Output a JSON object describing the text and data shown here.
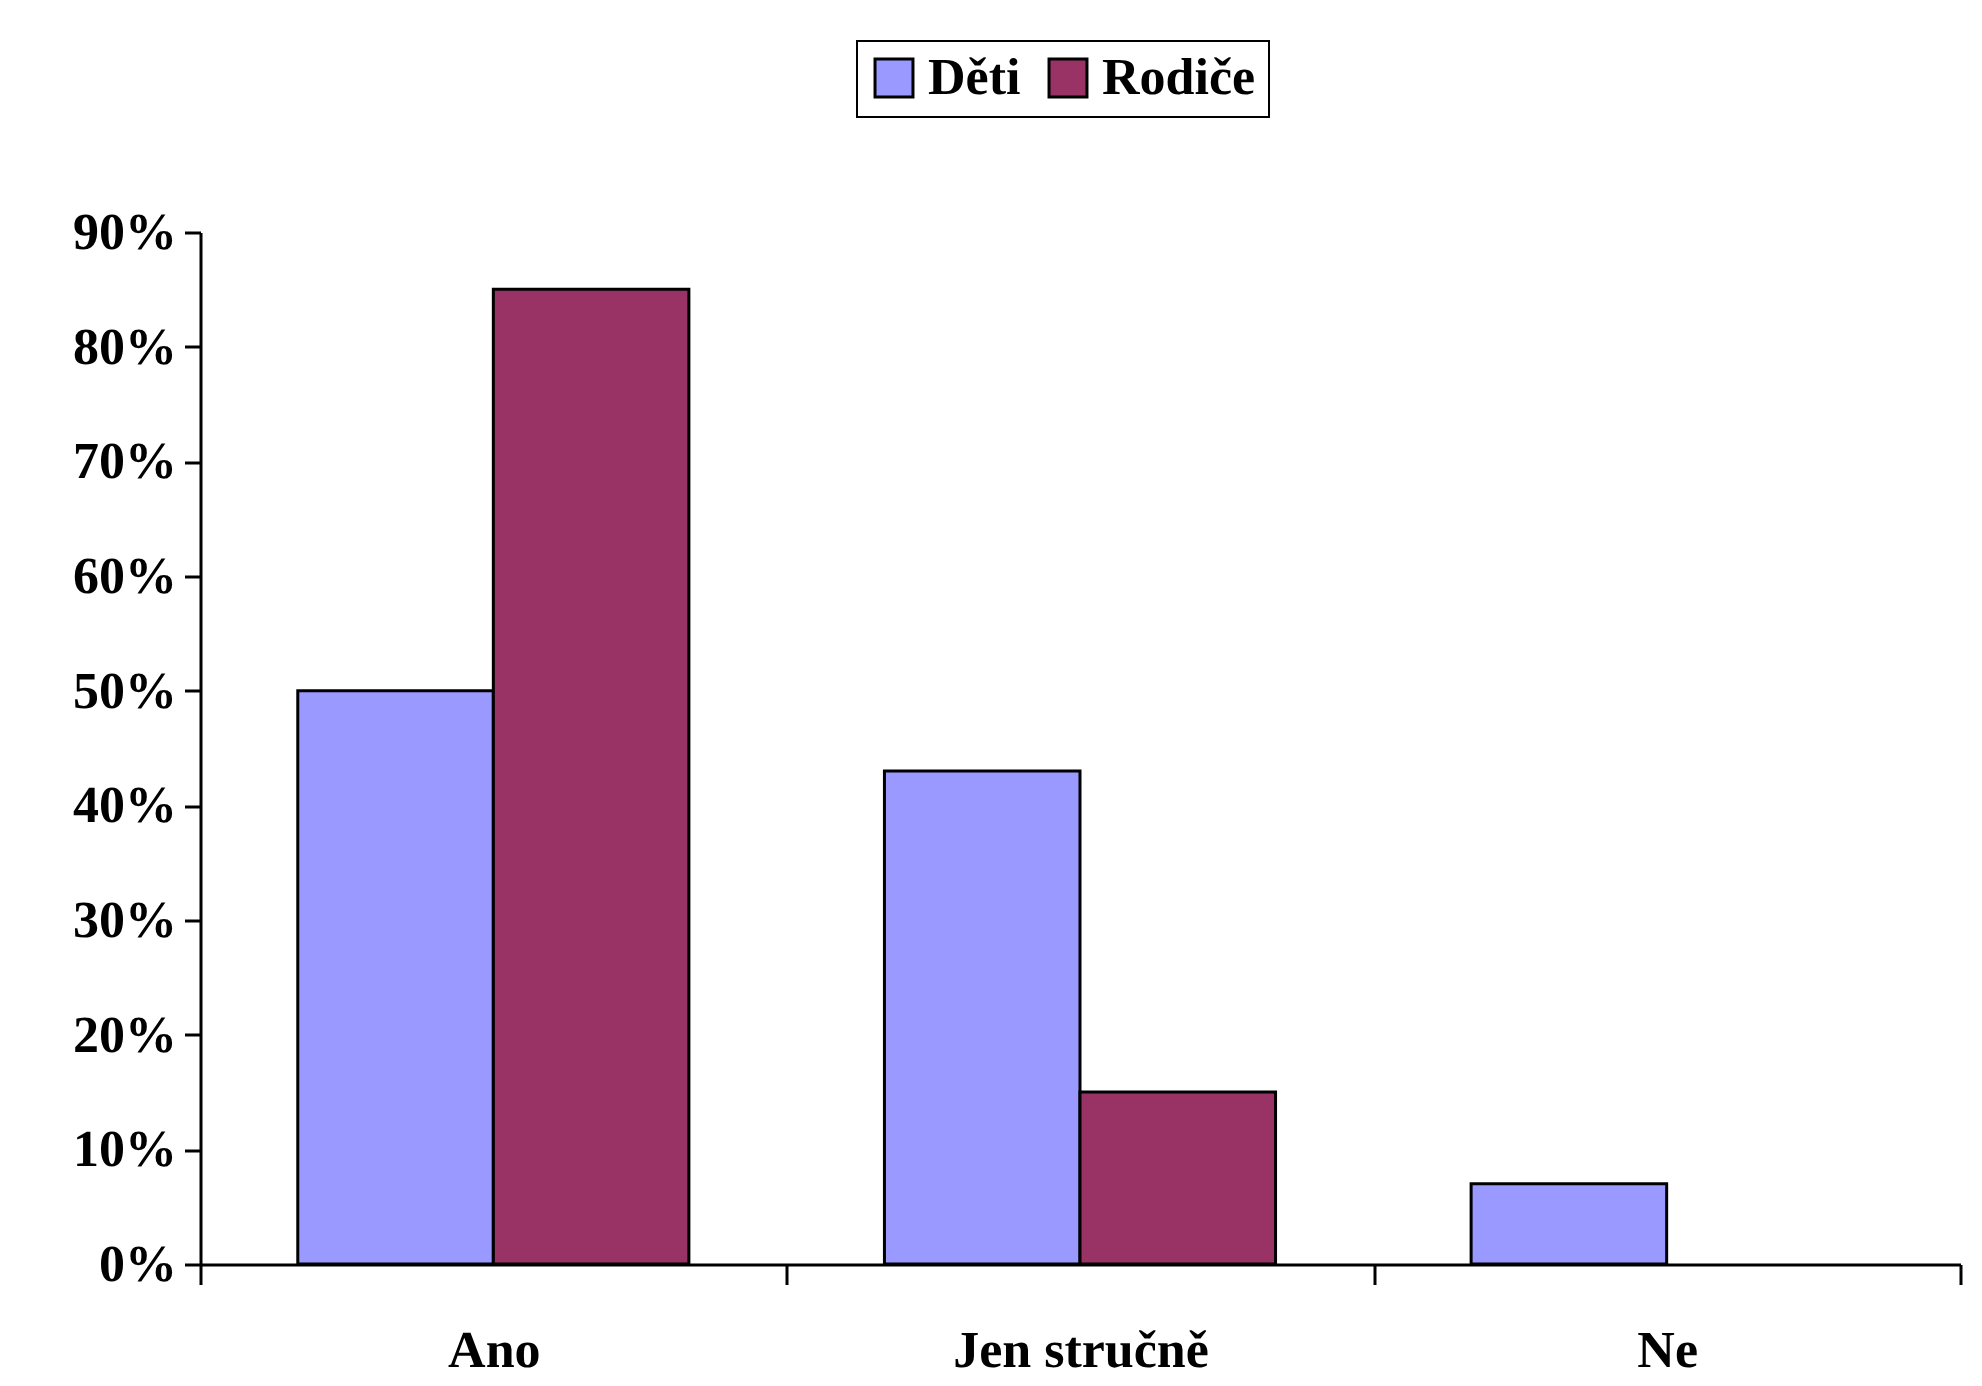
{
  "chart_data": {
    "type": "bar",
    "categories": [
      "Ano",
      "Jen stručně",
      "Ne"
    ],
    "series": [
      {
        "name": "Děti",
        "color": "#9999ff",
        "values": [
          50,
          43,
          7
        ]
      },
      {
        "name": "Rodiče",
        "color": "#993366",
        "values": [
          85,
          15,
          null
        ]
      }
    ],
    "ylim": [
      0,
      90
    ],
    "yticks": [
      {
        "value": 0,
        "label": "0%"
      },
      {
        "value": 10,
        "label": "10%"
      },
      {
        "value": 20,
        "label": "20%"
      },
      {
        "value": 30,
        "label": "30%"
      },
      {
        "value": 40,
        "label": "40%"
      },
      {
        "value": 50,
        "label": "50%"
      },
      {
        "value": 60,
        "label": "60%"
      },
      {
        "value": 70,
        "label": "70%"
      },
      {
        "value": 80,
        "label": "80%"
      },
      {
        "value": 90,
        "label": "90%"
      }
    ],
    "grid": false,
    "legend": "top"
  }
}
